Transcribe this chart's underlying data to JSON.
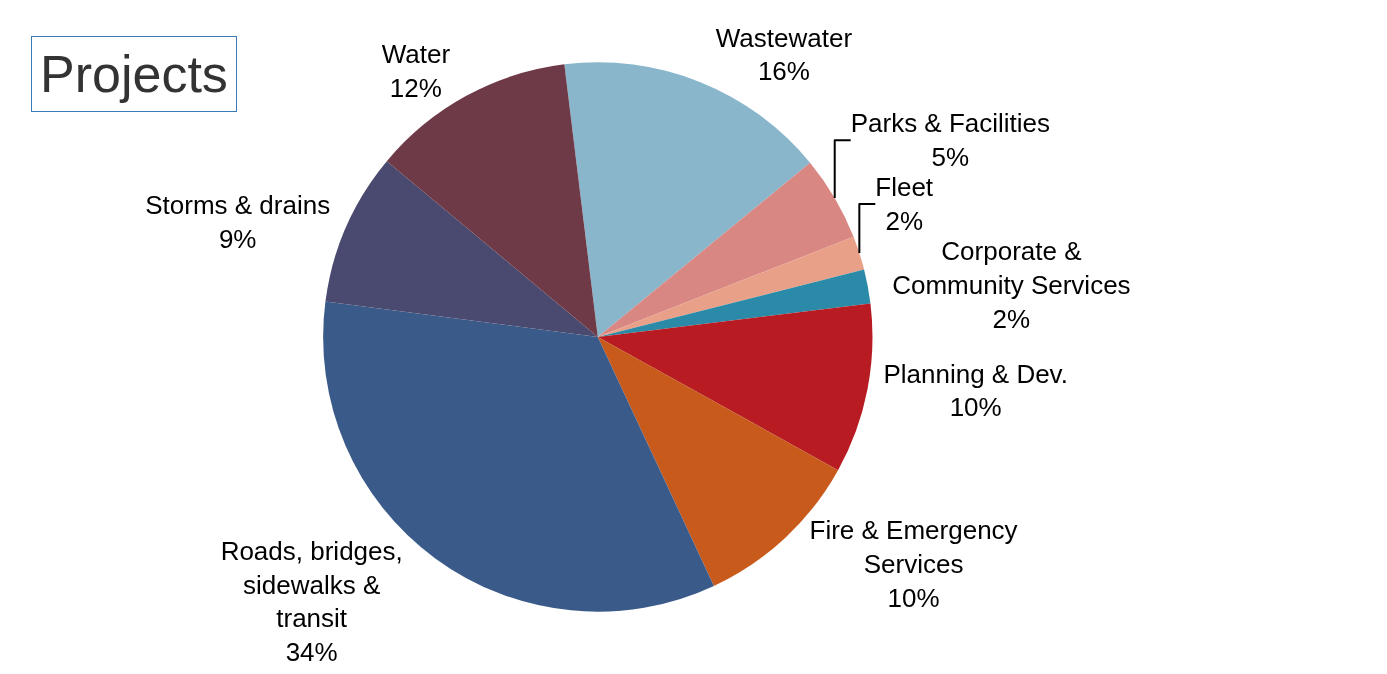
{
  "chart_data": {
    "type": "pie",
    "title": "Projects",
    "categories": [
      "Wastewater",
      "Parks & Facilities",
      "Fleet",
      "Corporate & Community Services",
      "Planning & Dev.",
      "Fire & Emergency Services",
      "Roads, bridges, sidewalks & transit",
      "Storms & drains",
      "Water"
    ],
    "values": [
      16,
      5,
      2,
      2,
      10,
      10,
      34,
      9,
      12
    ],
    "value_labels": [
      "16%",
      "5%",
      "2%",
      "2%",
      "10%",
      "10%",
      "34%",
      "9%",
      "12%"
    ],
    "colors": [
      "#8ab6cc",
      "#d98782",
      "#e8a088",
      "#2a8aa8",
      "#b81c22",
      "#c85a1c",
      "#3a5a8a",
      "#4a4a70",
      "#6e3a48"
    ],
    "legend": false
  }
}
